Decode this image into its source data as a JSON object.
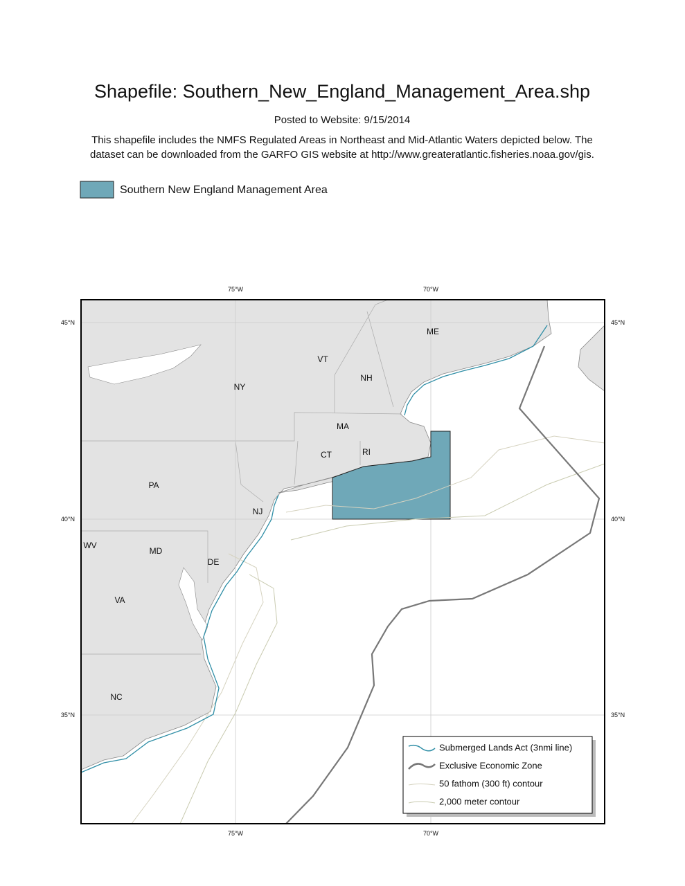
{
  "header": {
    "title": "Shapefile: Southern_New_England_Management_Area.shp",
    "posted": "Posted to Website: 9/15/2014",
    "description": [
      "This shapefile includes the NMFS Regulated Areas in Northeast and Mid-Atlantic Waters depicted below. The",
      "dataset can be downloaded from the GARFO GIS website at http://www.greateratlantic.fisheries.noaa.gov/gis."
    ]
  },
  "area_legend": "Southern New England Management Area",
  "map": {
    "graticule": {
      "top": [
        "75°W",
        "70°W"
      ],
      "bottom": [
        "75°W",
        "70°W"
      ],
      "left": [
        "45°N",
        "40°N",
        "35°N"
      ],
      "right": [
        "45°N",
        "40°N",
        "35°N"
      ]
    },
    "states": [
      "ME",
      "VT",
      "NH",
      "NY",
      "MA",
      "CT",
      "RI",
      "PA",
      "NJ",
      "WV",
      "MD",
      "DE",
      "VA",
      "NC"
    ],
    "legend": [
      "Submerged Lands Act (3nmi line)",
      "Exclusive Economic Zone",
      "50 fathom (300 ft) contour",
      "2,000 meter contour"
    ]
  }
}
